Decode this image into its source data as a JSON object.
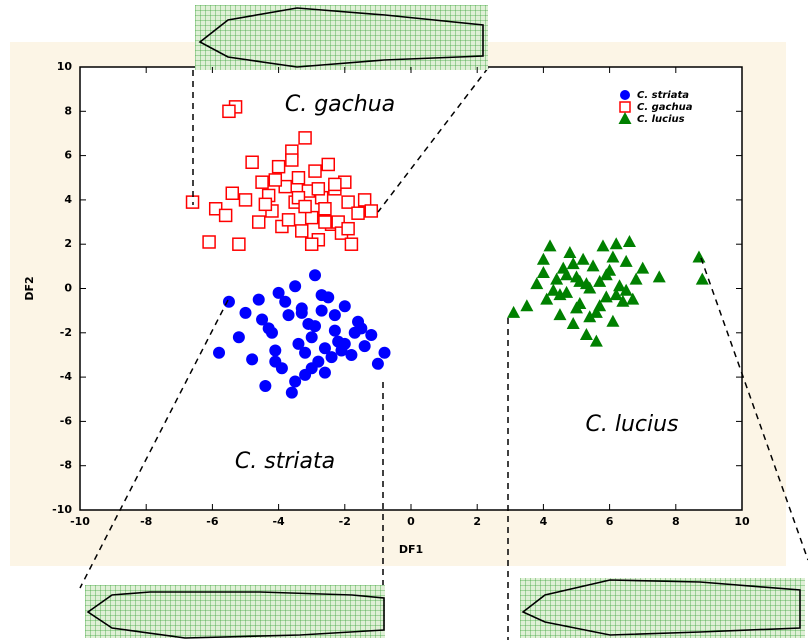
{
  "chart_data": {
    "type": "scatter",
    "xlabel": "DF1",
    "ylabel": "DF2",
    "annotations": [
      "C. gachua",
      "C. striata",
      "C. lucius"
    ],
    "xlim": [
      -10,
      10
    ],
    "ylim": [
      -10,
      10
    ],
    "xticks": [
      -10,
      -8,
      -6,
      -4,
      -2,
      0,
      2,
      4,
      6,
      8,
      10
    ],
    "yticks": [
      -10,
      -8,
      -6,
      -4,
      -2,
      0,
      2,
      4,
      6,
      8,
      10
    ],
    "legend": "upper right",
    "series": [
      {
        "name": "C. striata",
        "color": "#0000ff",
        "marker": "circle",
        "x": [
          -5.5,
          -5.8,
          -5.2,
          -5.0,
          -4.8,
          -4.6,
          -4.4,
          -4.3,
          -4.1,
          -4.0,
          -3.9,
          -3.7,
          -3.6,
          -3.5,
          -3.4,
          -3.3,
          -3.2,
          -3.1,
          -3.0,
          -2.9,
          -2.8,
          -2.7,
          -2.6,
          -2.5,
          -2.4,
          -2.3,
          -2.2,
          -2.0,
          -1.8,
          -1.6,
          -1.4,
          -1.2,
          -1.0,
          -0.8,
          -4.5,
          -4.2,
          -3.8,
          -3.5,
          -3.2,
          -2.9,
          -2.6,
          -2.3,
          -2.0,
          -1.7,
          -3.0,
          -2.7,
          -3.3,
          -4.1,
          -1.5,
          -2.1
        ],
        "y": [
          -0.6,
          -2.9,
          -2.2,
          -1.1,
          -3.2,
          -0.5,
          -4.4,
          -1.8,
          -2.8,
          -0.2,
          -3.6,
          -1.2,
          -4.7,
          0.1,
          -2.5,
          -0.9,
          -3.9,
          -1.6,
          -2.2,
          0.6,
          -3.3,
          -1.0,
          -2.7,
          -0.4,
          -3.1,
          -1.9,
          -2.4,
          -0.8,
          -3.0,
          -1.5,
          -2.6,
          -2.1,
          -3.4,
          -2.9,
          -1.4,
          -2.0,
          -0.6,
          -4.2,
          -2.9,
          -1.7,
          -3.8,
          -1.2,
          -2.5,
          -2.0,
          -3.6,
          -0.3,
          -1.1,
          -3.3,
          -1.8,
          -2.8
        ]
      },
      {
        "name": "C. gachua",
        "color": "#ff0000",
        "marker": "square",
        "x": [
          -5.3,
          -5.5,
          -6.6,
          -6.1,
          -5.2,
          -5.9,
          -5.6,
          -5.4,
          -5.0,
          -4.8,
          -4.6,
          -4.5,
          -4.3,
          -4.2,
          -4.0,
          -3.9,
          -3.8,
          -3.6,
          -3.5,
          -3.4,
          -3.3,
          -3.2,
          -3.1,
          -3.0,
          -2.9,
          -2.8,
          -2.7,
          -2.6,
          -2.5,
          -2.4,
          -2.3,
          -2.2,
          -2.1,
          -2.0,
          -1.9,
          -1.8,
          -1.6,
          -1.4,
          -1.2,
          -4.4,
          -4.1,
          -3.7,
          -3.4,
          -3.0,
          -2.6,
          -2.3,
          -1.9,
          -3.6,
          -3.2,
          -2.8
        ],
        "y": [
          8.2,
          8.0,
          3.9,
          2.1,
          2.0,
          3.6,
          3.3,
          4.3,
          4.0,
          5.7,
          3.0,
          4.8,
          4.2,
          3.5,
          5.5,
          2.8,
          4.6,
          6.2,
          3.9,
          5.0,
          2.6,
          6.8,
          4.4,
          3.2,
          5.3,
          2.2,
          4.1,
          3.6,
          5.6,
          2.9,
          4.5,
          3.0,
          2.5,
          4.8,
          3.9,
          2.0,
          3.4,
          4.0,
          3.5,
          3.8,
          4.9,
          3.1,
          4.1,
          2.0,
          3.0,
          4.7,
          2.7,
          5.8,
          3.7,
          4.5
        ]
      },
      {
        "name": "C. lucius",
        "color": "#008000",
        "marker": "triangle",
        "x": [
          3.1,
          3.5,
          3.8,
          4.0,
          4.1,
          4.2,
          4.4,
          4.5,
          4.6,
          4.7,
          4.8,
          4.9,
          5.0,
          5.1,
          5.2,
          5.3,
          5.4,
          5.5,
          5.6,
          5.7,
          5.8,
          5.9,
          6.0,
          6.1,
          6.2,
          6.3,
          6.4,
          6.5,
          6.6,
          6.8,
          7.0,
          7.5,
          8.7,
          8.8,
          4.3,
          4.7,
          5.0,
          5.3,
          5.6,
          5.9,
          6.2,
          6.5,
          4.0,
          4.5,
          5.1,
          5.7,
          6.1,
          6.7,
          4.9,
          5.4
        ],
        "y": [
          -1.1,
          -0.8,
          0.2,
          1.3,
          -0.5,
          1.9,
          0.4,
          -1.2,
          0.9,
          -0.2,
          1.6,
          -1.6,
          0.5,
          -0.7,
          1.3,
          -2.1,
          0.0,
          1.0,
          -1.1,
          0.3,
          1.9,
          -0.4,
          0.8,
          -1.5,
          2.0,
          0.1,
          -0.6,
          1.2,
          2.1,
          0.4,
          0.9,
          0.5,
          1.4,
          0.4,
          -0.1,
          0.6,
          -0.9,
          0.2,
          -2.4,
          0.6,
          -0.3,
          -0.1,
          0.7,
          -0.3,
          0.3,
          -0.8,
          1.4,
          -0.5,
          1.1,
          -1.3
        ]
      }
    ]
  }
}
